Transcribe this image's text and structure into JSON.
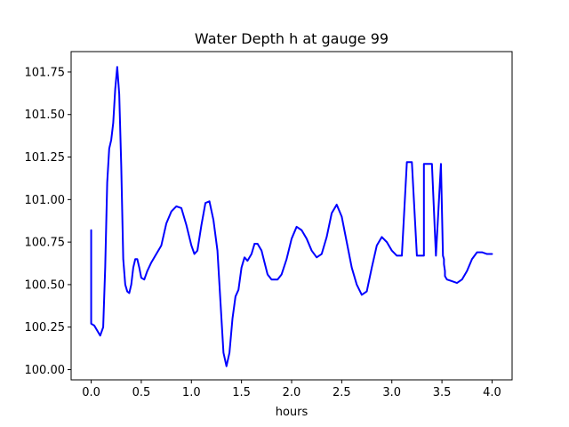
{
  "chart_data": {
    "type": "line",
    "title": "Water Depth h at gauge 99",
    "xlabel": "hours",
    "ylabel": "",
    "xlim": [
      -0.2,
      4.2
    ],
    "ylim": [
      99.94,
      101.87
    ],
    "xticks": [
      0.0,
      0.5,
      1.0,
      1.5,
      2.0,
      2.5,
      3.0,
      3.5,
      4.0
    ],
    "xtick_labels": [
      "0.0",
      "0.5",
      "1.0",
      "1.5",
      "2.0",
      "2.5",
      "3.0",
      "3.5",
      "4.0"
    ],
    "yticks": [
      100.0,
      100.25,
      100.5,
      100.75,
      101.0,
      101.25,
      101.5,
      101.75
    ],
    "ytick_labels": [
      "100.00",
      "100.25",
      "100.50",
      "100.75",
      "101.00",
      "101.25",
      "101.50",
      "101.75"
    ],
    "grid": false,
    "legend": "none",
    "series": [
      {
        "color": "#0000ff",
        "x": [
          0.0,
          0.0,
          0.03,
          0.06,
          0.09,
          0.12,
          0.14,
          0.16,
          0.18,
          0.2,
          0.22,
          0.24,
          0.26,
          0.28,
          0.3,
          0.32,
          0.34,
          0.36,
          0.38,
          0.4,
          0.42,
          0.44,
          0.46,
          0.48,
          0.5,
          0.53,
          0.56,
          0.6,
          0.65,
          0.7,
          0.75,
          0.8,
          0.85,
          0.9,
          0.95,
          1.0,
          1.03,
          1.06,
          1.1,
          1.14,
          1.18,
          1.22,
          1.26,
          1.29,
          1.32,
          1.35,
          1.38,
          1.41,
          1.44,
          1.47,
          1.5,
          1.53,
          1.56,
          1.6,
          1.63,
          1.66,
          1.7,
          1.73,
          1.76,
          1.8,
          1.83,
          1.86,
          1.9,
          1.95,
          2.0,
          2.05,
          2.1,
          2.15,
          2.2,
          2.25,
          2.3,
          2.35,
          2.4,
          2.45,
          2.5,
          2.55,
          2.6,
          2.65,
          2.7,
          2.75,
          2.8,
          2.85,
          2.9,
          2.95,
          3.0,
          3.05,
          3.1,
          3.15,
          3.2,
          3.25,
          3.3,
          3.3,
          3.32,
          3.32,
          3.35,
          3.4,
          3.44,
          3.44,
          3.49,
          3.49,
          3.51,
          3.51,
          3.52,
          3.52,
          3.53,
          3.53,
          3.55,
          3.6,
          3.65,
          3.7,
          3.75,
          3.8,
          3.85,
          3.9,
          3.95,
          4.0
        ],
        "y": [
          100.82,
          100.27,
          100.26,
          100.23,
          100.2,
          100.25,
          100.6,
          101.1,
          101.3,
          101.35,
          101.45,
          101.65,
          101.78,
          101.62,
          101.2,
          100.65,
          100.5,
          100.46,
          100.45,
          100.5,
          100.6,
          100.65,
          100.65,
          100.6,
          100.54,
          100.53,
          100.58,
          100.63,
          100.68,
          100.73,
          100.86,
          100.93,
          100.96,
          100.95,
          100.85,
          100.73,
          100.68,
          100.7,
          100.85,
          100.98,
          100.99,
          100.88,
          100.7,
          100.4,
          100.1,
          100.02,
          100.1,
          100.3,
          100.43,
          100.47,
          100.6,
          100.66,
          100.64,
          100.68,
          100.74,
          100.74,
          100.7,
          100.63,
          100.56,
          100.53,
          100.53,
          100.53,
          100.56,
          100.65,
          100.77,
          100.84,
          100.82,
          100.77,
          100.7,
          100.66,
          100.68,
          100.78,
          100.92,
          100.97,
          100.9,
          100.75,
          100.6,
          100.5,
          100.44,
          100.46,
          100.6,
          100.73,
          100.78,
          100.75,
          100.7,
          100.67,
          100.67,
          101.22,
          101.22,
          100.67,
          100.67,
          100.67,
          100.67,
          101.21,
          101.21,
          101.21,
          100.67,
          100.67,
          101.21,
          101.21,
          100.67,
          100.67,
          100.65,
          100.62,
          100.58,
          100.55,
          100.53,
          100.52,
          100.51,
          100.53,
          100.58,
          100.65,
          100.69,
          100.69,
          100.68,
          100.68
        ]
      }
    ]
  }
}
